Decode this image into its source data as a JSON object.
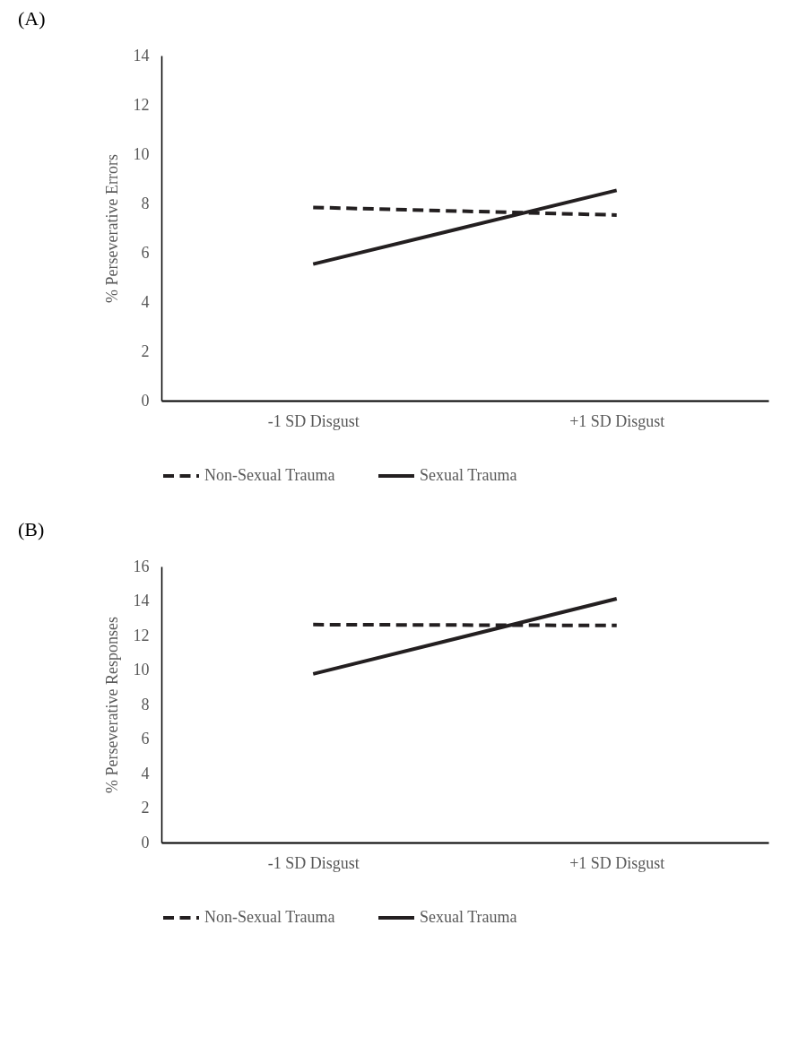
{
  "chart_data": [
    {
      "type": "line",
      "title": "(A)",
      "ylabel": "% Perseverative Errors",
      "categories": [
        "-1 SD Disgust",
        "+1 SD Disgust"
      ],
      "ylim": [
        0,
        14
      ],
      "yticks": [
        0,
        2,
        4,
        6,
        8,
        10,
        12,
        14
      ],
      "grid": false,
      "legend": "bottom",
      "marker": "none",
      "series": [
        {
          "name": "Non-Sexual Trauma",
          "color": "#231f20",
          "line_style": "dashed",
          "values": [
            7.84,
            7.53
          ]
        },
        {
          "name": "Sexual Trauma",
          "color": "#231f20",
          "line_style": "solid",
          "values": [
            5.54,
            8.53
          ]
        }
      ]
    },
    {
      "type": "line",
      "title": "(B)",
      "ylabel": "% Perseverative Responses",
      "categories": [
        "-1 SD Disgust",
        "+1 SD Disgust"
      ],
      "ylim": [
        0,
        16
      ],
      "yticks": [
        0,
        2,
        4,
        6,
        8,
        10,
        12,
        14,
        16
      ],
      "grid": false,
      "legend": "bottom",
      "marker": "none",
      "series": [
        {
          "name": "Non-Sexual Trauma",
          "color": "#231f20",
          "line_style": "dashed",
          "values": [
            12.63,
            12.58
          ]
        },
        {
          "name": "Sexual Trauma",
          "color": "#231f20",
          "line_style": "solid",
          "values": [
            9.77,
            14.13
          ]
        }
      ]
    }
  ]
}
